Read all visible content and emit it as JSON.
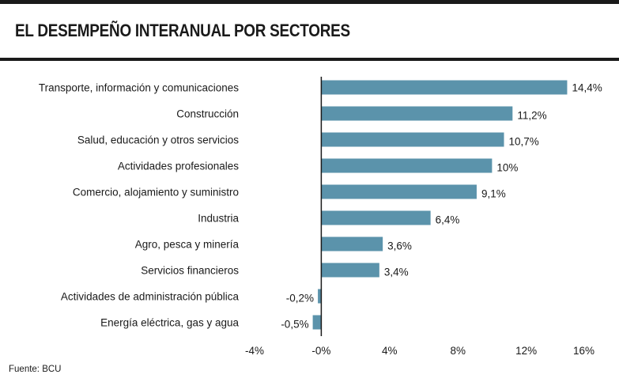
{
  "header": {
    "title": "EL DESEMPEÑO INTERANUAL POR SECTORES"
  },
  "footer": {
    "source": "Fuente: BCU"
  },
  "colors": {
    "bar": "#5b93ab",
    "axis": "#1a1a1a"
  },
  "chart_data": {
    "type": "bar",
    "orientation": "horizontal",
    "title": "EL DESEMPEÑO INTERANUAL POR SECTORES",
    "xlabel": "",
    "ylabel": "",
    "grid": false,
    "categories": [
      "Transporte, información y comunicaciones",
      "Construcción",
      "Salud, educación y otros servicios",
      "Actividades profesionales",
      "Comercio, alojamiento y suministro",
      "Industria",
      "Agro, pesca y minería",
      "Servicios financieros",
      "Actividades de administración pública",
      "Energía eléctrica, gas y agua"
    ],
    "values": [
      14.4,
      11.2,
      10.7,
      10,
      9.1,
      6.4,
      3.6,
      3.4,
      -0.2,
      -0.5
    ],
    "value_labels": [
      "14,4%",
      "11,2%",
      "10,7%",
      "10%",
      "9,1%",
      "6,4%",
      "3,6%",
      "3,4%",
      "-0,2%",
      "-0,5%"
    ],
    "xlim": [
      -4,
      16
    ],
    "xticks": [
      -4,
      0,
      4,
      8,
      12,
      16
    ],
    "xtick_labels": [
      "-4%",
      "-0%",
      "4%",
      "8%",
      "12%",
      "16%"
    ]
  }
}
